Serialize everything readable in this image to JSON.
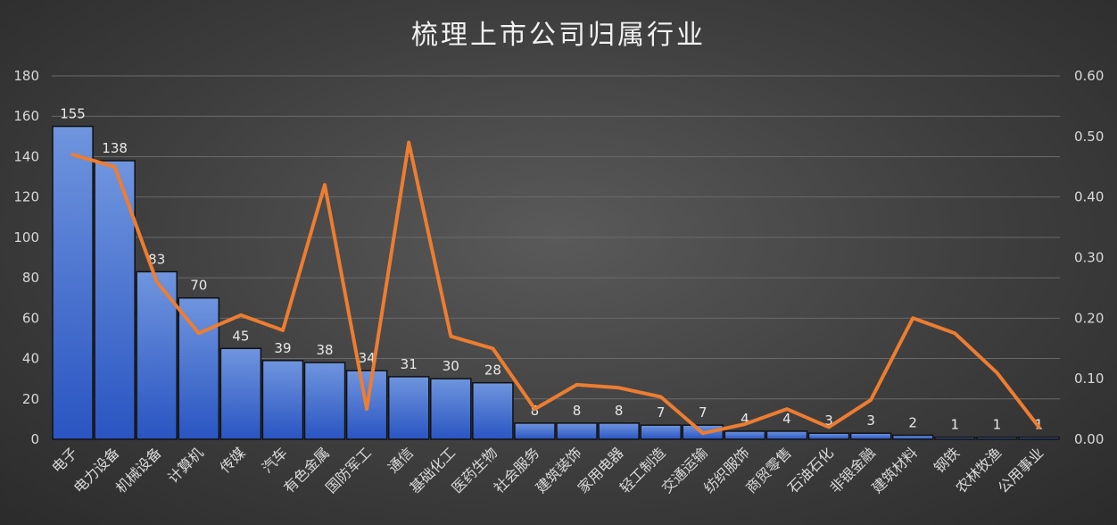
{
  "chart_data": {
    "type": "bar",
    "title": "梳理上市公司归属行业",
    "categories": [
      "电子",
      "电力设备",
      "机械设备",
      "计算机",
      "传媒",
      "汽车",
      "有色金属",
      "国防军工",
      "通信",
      "基础化工",
      "医药生物",
      "社会服务",
      "建筑装饰",
      "家用电器",
      "轻工制造",
      "交通运输",
      "纺织服饰",
      "商贸零售",
      "石油石化",
      "非银金融",
      "建筑材料",
      "钢铁",
      "农林牧渔",
      "公用事业"
    ],
    "series": [
      {
        "values": [
          155,
          138,
          83,
          70,
          45,
          39,
          38,
          34,
          31,
          30,
          28,
          8,
          8,
          8,
          7,
          7,
          4,
          4,
          3,
          3,
          2,
          1,
          1,
          1
        ],
        "axis": "left",
        "type": "bar",
        "color": "#4472c4"
      },
      {
        "values": [
          0.47,
          0.45,
          0.26,
          0.175,
          0.205,
          0.18,
          0.42,
          0.05,
          0.49,
          0.17,
          0.15,
          0.05,
          0.09,
          0.085,
          0.07,
          0.01,
          0.025,
          0.05,
          0.02,
          0.065,
          0.2,
          0.175,
          0.11,
          0.02
        ],
        "axis": "right",
        "type": "line",
        "color": "#ed7d31"
      }
    ],
    "y_left": {
      "min": 0,
      "max": 180,
      "step": 20,
      "ticks": [
        "0",
        "20",
        "40",
        "60",
        "80",
        "100",
        "120",
        "140",
        "160",
        "180"
      ]
    },
    "y_right": {
      "min": 0,
      "max": 0.6,
      "step": 0.1,
      "ticks": [
        "0.00",
        "0.10",
        "0.20",
        "0.30",
        "0.40",
        "0.50",
        "0.60"
      ]
    },
    "grid": true,
    "legend": "none",
    "data_labels": [
      "155",
      "138",
      "83",
      "70",
      "45",
      "39",
      "38",
      "34",
      "31",
      "30",
      "28",
      "8",
      "8",
      "8",
      "7",
      "7",
      "4",
      "4",
      "3",
      "3",
      "2",
      "1",
      "1",
      "1"
    ]
  }
}
